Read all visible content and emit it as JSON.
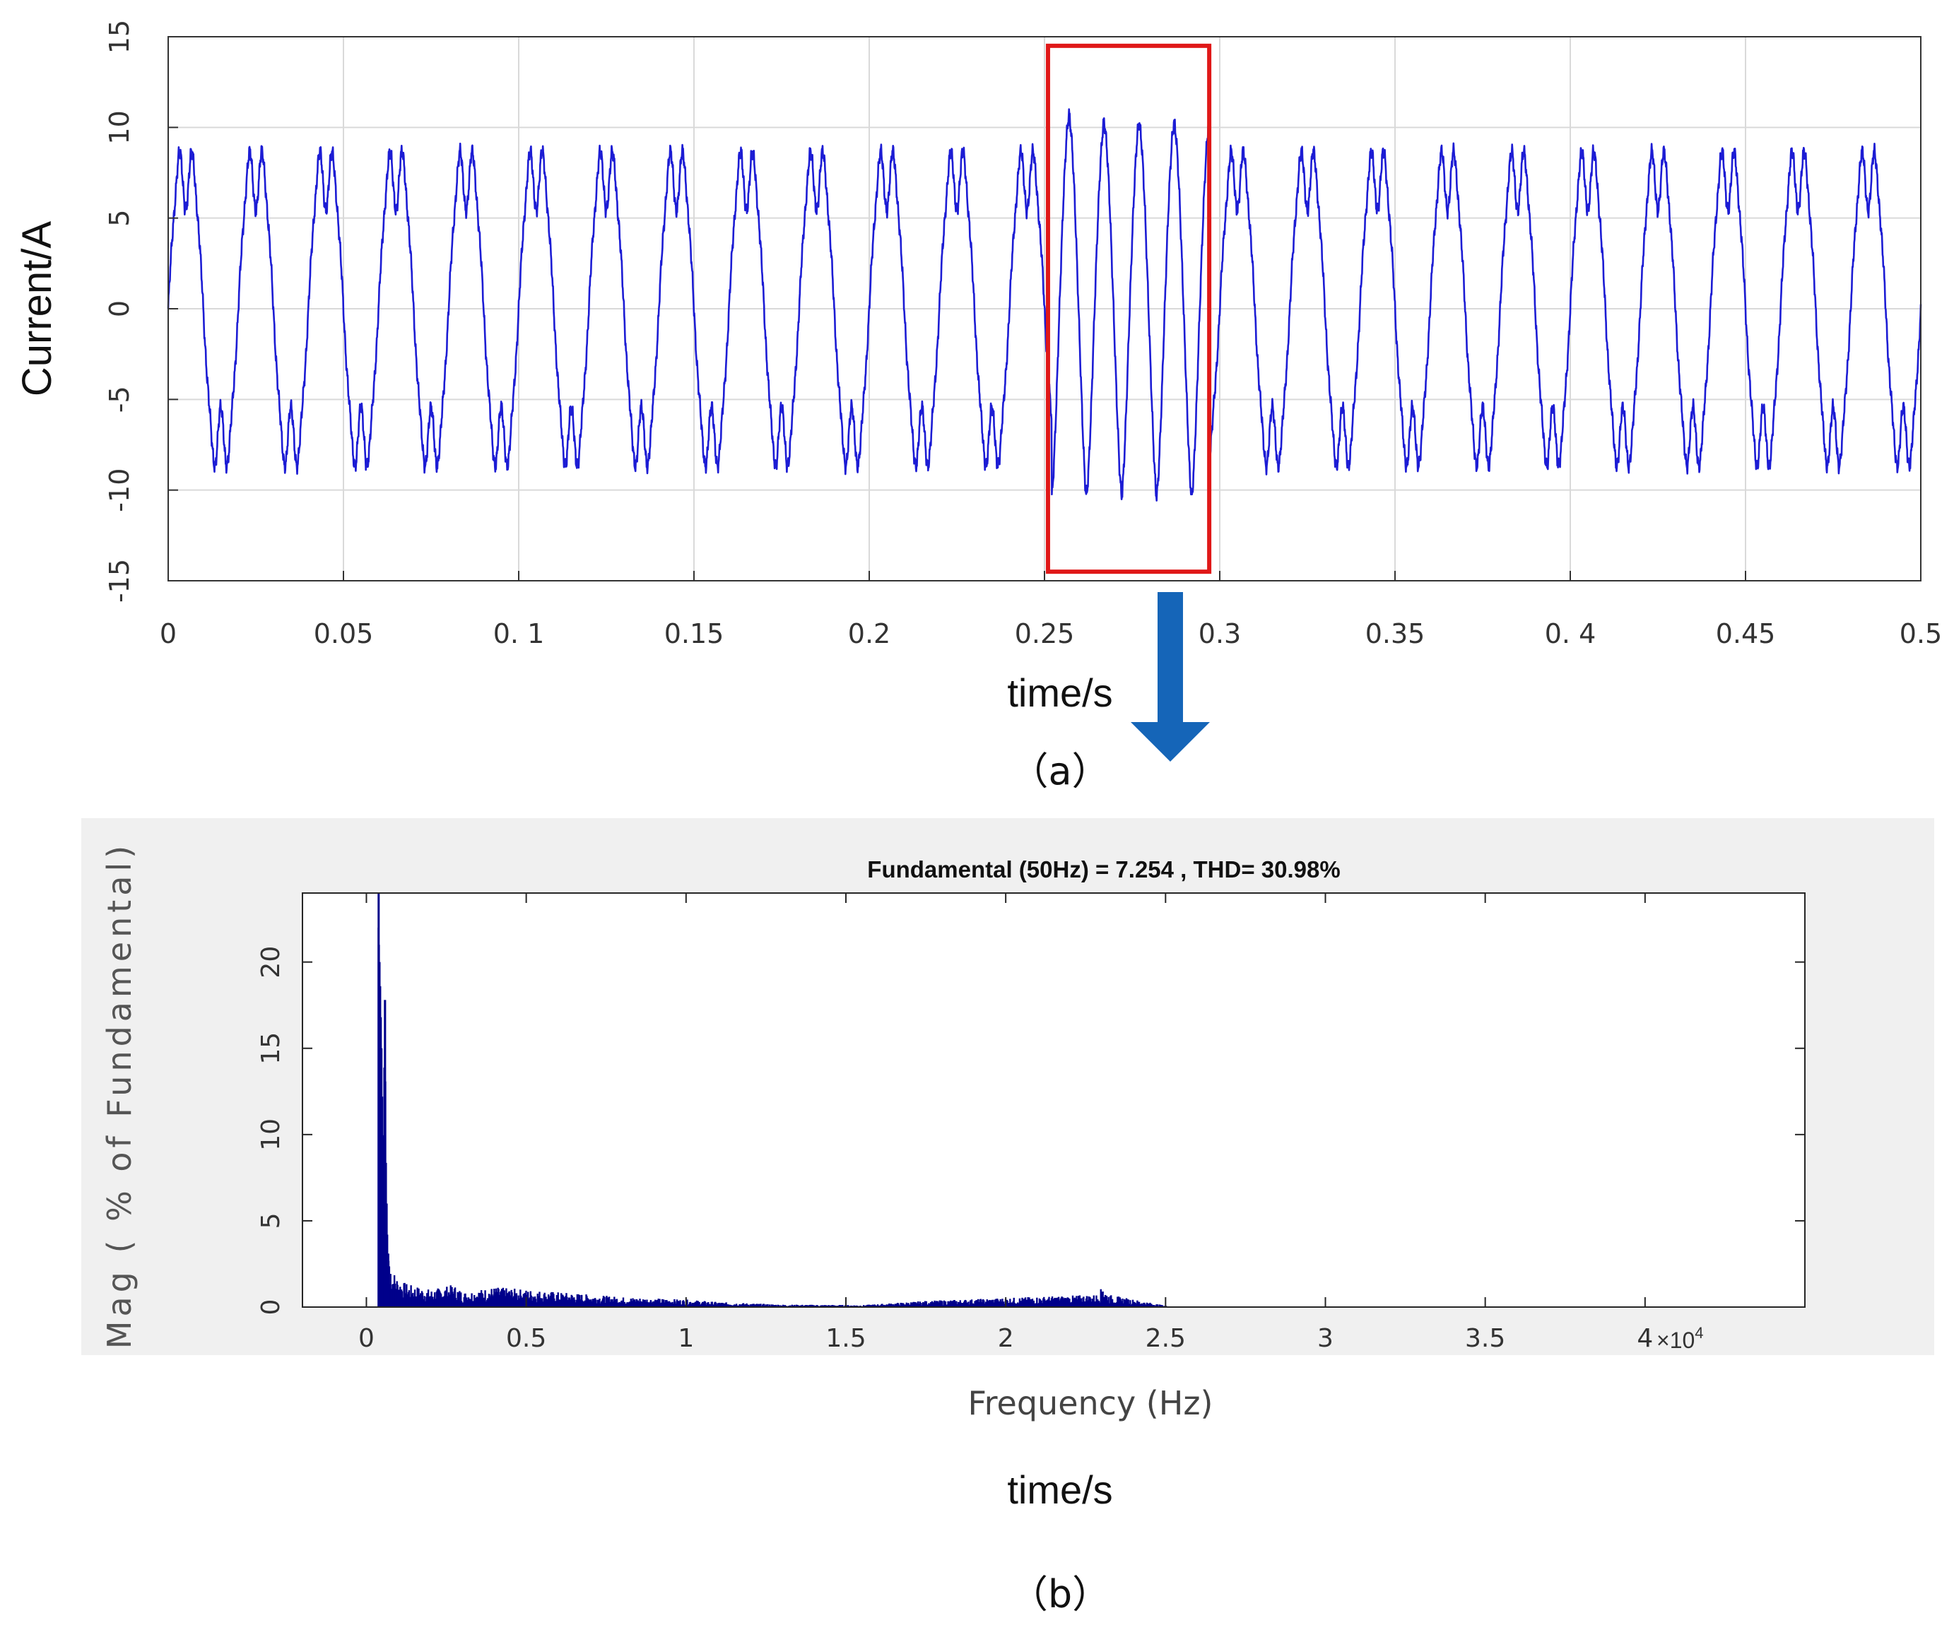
{
  "panel_a_caption": "（a）",
  "panel_b_caption": "（b）",
  "panel_b_extra_label": "time/s",
  "colors": {
    "signal": "#1c1cd4",
    "highlight_box": "#e01818",
    "arrow": "#1565b8",
    "spectrum": "#00008b",
    "panel_b_background": "#f0f0f0",
    "grid": "#d9d9d9"
  },
  "chart_data": [
    {
      "type": "line",
      "title": "",
      "xlabel": "time/s",
      "ylabel": "Current/A",
      "xlim": [
        0,
        0.5
      ],
      "ylim": [
        -15,
        15
      ],
      "grid": true,
      "xticks": [
        "0",
        "0.05",
        "0. 1",
        "0.15",
        "0.2",
        "0.25",
        "0.3",
        "0.35",
        "0. 4",
        "0.45",
        "0.5"
      ],
      "yticks": [
        "-15",
        "-10",
        "-5",
        "0",
        "5",
        "10",
        "15"
      ],
      "series": [
        {
          "description": "periodic current waveform, fundamental frequency 50 Hz",
          "frequency_hz": 50,
          "peak_normal": 9.2,
          "trough_normal": -9.7,
          "distorted_interval": [
            0.252,
            0.297
          ],
          "distorted_peaks": [
            10.7,
            10.3
          ],
          "distorted_troughs": [
            -10.4,
            -10.2,
            -10.3
          ]
        }
      ],
      "annotations": [
        {
          "type": "highlight_box",
          "x_range": [
            0.251,
            0.297
          ],
          "y_range": [
            -14.5,
            14.5
          ]
        },
        {
          "type": "arrow",
          "direction": "down",
          "from_x": 0.2755
        }
      ]
    },
    {
      "type": "bar",
      "title": "Fundamental (50Hz) = 7.254 , THD= 30.98%",
      "xlabel": "Frequency (Hz)",
      "ylabel": "Mag ( % of Fundamental)",
      "x_scale_label": "×10",
      "x_scale_exponent": "4",
      "xlim": [
        -0.2,
        4.5
      ],
      "ylim": [
        0,
        22
      ],
      "x_unit_multiplier": 10000,
      "xticks": [
        "0",
        "0.5",
        "1",
        "1.5",
        "2",
        "2.5",
        "3",
        "3.5",
        "4"
      ],
      "yticks": [
        "0",
        "5",
        "10",
        "15",
        "20"
      ],
      "spectrum_points": [
        [
          0.035,
          22
        ],
        [
          0.04,
          19.5
        ],
        [
          0.045,
          15
        ],
        [
          0.05,
          8
        ],
        [
          0.055,
          17.8
        ],
        [
          0.06,
          6
        ],
        [
          0.065,
          3
        ],
        [
          0.07,
          2.2
        ],
        [
          0.08,
          1.5
        ],
        [
          0.1,
          1.1
        ],
        [
          0.13,
          0.9
        ],
        [
          0.2,
          0.7
        ],
        [
          0.27,
          0.9
        ],
        [
          0.3,
          0.6
        ],
        [
          0.4,
          0.8
        ],
        [
          0.5,
          0.7
        ],
        [
          0.6,
          0.6
        ],
        [
          0.7,
          0.5
        ],
        [
          0.8,
          0.4
        ],
        [
          0.9,
          0.35
        ],
        [
          1.0,
          0.3
        ],
        [
          1.1,
          0.2
        ],
        [
          1.2,
          0.15
        ],
        [
          1.3,
          0.1
        ],
        [
          1.55,
          0.08
        ],
        [
          1.75,
          0.25
        ],
        [
          2.28,
          0.5
        ],
        [
          2.3,
          0.8
        ],
        [
          2.32,
          0.5
        ],
        [
          2.5,
          0.05
        ]
      ]
    }
  ]
}
